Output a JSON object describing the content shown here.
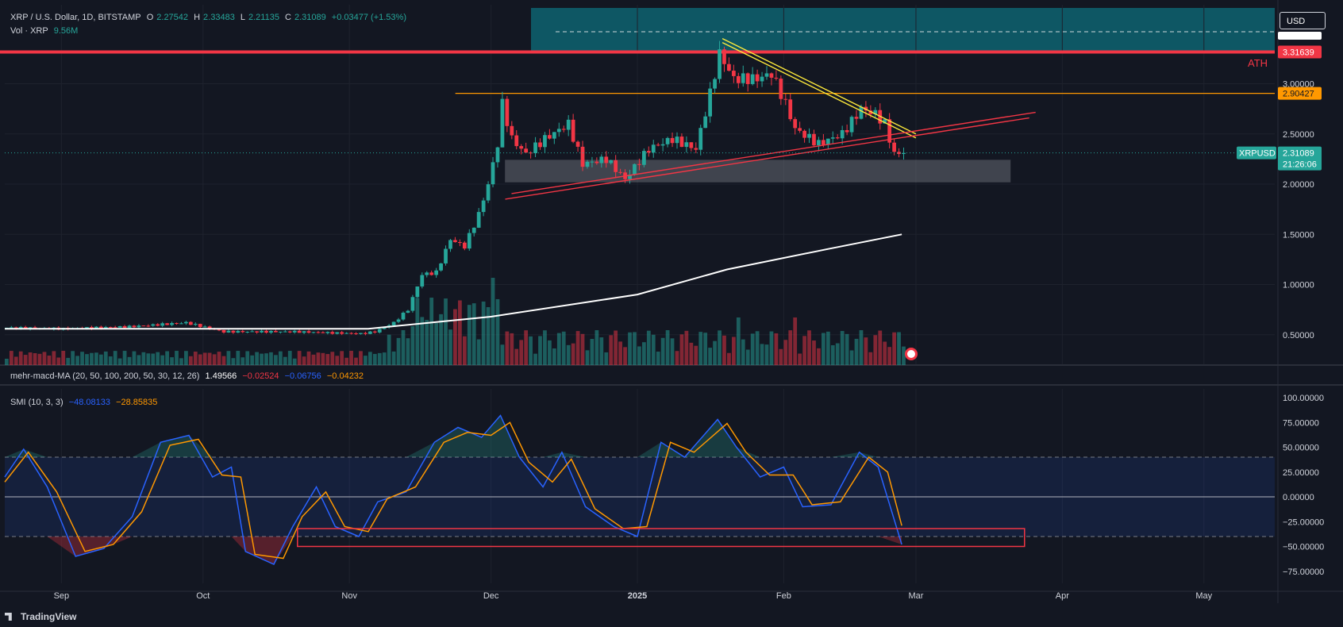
{
  "header": {
    "symbol_title": "XRP / U.S. Dollar, 1D, BITSTAMP",
    "o_label": "O",
    "o_value": "2.27542",
    "h_label": "H",
    "h_value": "2.33483",
    "l_label": "L",
    "l_value": "2.21135",
    "c_label": "C",
    "c_value": "2.31089",
    "change": "+0.03477 (+1.53%)",
    "vol_label": "Vol · XRP",
    "vol_value": "9.56M"
  },
  "currency_button": "USD",
  "indicators": {
    "macd_label": "mehr-macd-MA (20, 50, 100, 200, 50, 30, 12, 26)",
    "macd_v1": "1.49566",
    "macd_v2": "−0.02524",
    "macd_v3": "−0.06756",
    "macd_v4": "−0.04232",
    "smi_label": "SMI (10, 3, 3)",
    "smi_v1": "−48.08133",
    "smi_v2": "−28.85835"
  },
  "brand": "TradingView",
  "colors": {
    "background": "#131722",
    "up": "#26a69a",
    "down": "#f23645",
    "ma_line": "#ffffff",
    "resistance": "#ffeb3b",
    "support": "#f23645",
    "level_orange": "#ff9800",
    "ath_zone": "#0e6370",
    "smi_blue": "#2962ff",
    "smi_orange": "#ff9800"
  },
  "chart_data": [
    {
      "type": "candlestick",
      "symbol": "XRPUSD",
      "price_axis_labels": [
        "3.00000",
        "2.50000",
        "2.00000",
        "1.50000",
        "1.00000",
        "0.50000"
      ],
      "time_axis_labels": [
        "Sep",
        "Oct",
        "Nov",
        "Dec",
        "2025",
        "Feb",
        "Mar",
        "Apr",
        "May"
      ],
      "current_price": "2.31089",
      "countdown": "21:26:06",
      "levels": [
        {
          "label": "ATH",
          "value": "3.31639"
        },
        {
          "label": "",
          "value": "2.90427"
        }
      ],
      "ath_label": "ATH",
      "price_path": [
        [
          "2024-08-20",
          0.57
        ],
        [
          "2024-09-01",
          0.56
        ],
        [
          "2024-09-15",
          0.58
        ],
        [
          "2024-09-27",
          0.62
        ],
        [
          "2024-10-05",
          0.53
        ],
        [
          "2024-10-20",
          0.53
        ],
        [
          "2024-11-03",
          0.51
        ],
        [
          "2024-11-06",
          0.53
        ],
        [
          "2024-11-10",
          0.62
        ],
        [
          "2024-11-13",
          0.75
        ],
        [
          "2024-11-16",
          1.1
        ],
        [
          "2024-11-19",
          1.12
        ],
        [
          "2024-11-22",
          1.45
        ],
        [
          "2024-11-25",
          1.38
        ],
        [
          "2024-11-28",
          1.7
        ],
        [
          "2024-11-30",
          2.0
        ],
        [
          "2024-12-02",
          2.4
        ],
        [
          "2024-12-03",
          2.8
        ],
        [
          "2024-12-05",
          2.45
        ],
        [
          "2024-12-08",
          2.3
        ],
        [
          "2024-12-12",
          2.45
        ],
        [
          "2024-12-17",
          2.6
        ],
        [
          "2024-12-20",
          2.2
        ],
        [
          "2024-12-25",
          2.25
        ],
        [
          "2024-12-29",
          2.05
        ],
        [
          "2025-01-03",
          2.35
        ],
        [
          "2025-01-08",
          2.45
        ],
        [
          "2025-01-13",
          2.35
        ],
        [
          "2025-01-16",
          2.9
        ],
        [
          "2025-01-18",
          3.3
        ],
        [
          "2025-01-21",
          3.05
        ],
        [
          "2025-01-26",
          3.05
        ],
        [
          "2025-01-29",
          3.1
        ],
        [
          "2025-02-01",
          2.8
        ],
        [
          "2025-02-03",
          2.55
        ],
        [
          "2025-02-08",
          2.4
        ],
        [
          "2025-02-13",
          2.5
        ],
        [
          "2025-02-17",
          2.75
        ],
        [
          "2025-02-20",
          2.7
        ],
        [
          "2025-02-22",
          2.6
        ],
        [
          "2025-02-24",
          2.3
        ],
        [
          "2025-02-26",
          2.31
        ]
      ],
      "ma_line": [
        [
          "2024-08-20",
          0.56
        ],
        [
          "2024-11-05",
          0.56
        ],
        [
          "2024-12-01",
          0.68
        ],
        [
          "2025-01-01",
          0.9
        ],
        [
          "2025-01-20",
          1.15
        ],
        [
          "2025-02-10",
          1.35
        ],
        [
          "2025-02-26",
          1.5
        ]
      ],
      "resistance_line": [
        [
          "2025-01-19",
          3.45
        ],
        [
          "2025-02-29",
          2.5
        ]
      ],
      "support_line": [
        [
          "2024-12-04",
          1.85
        ],
        [
          "2025-03-25",
          2.66
        ]
      ],
      "support_zone": {
        "from": "2024-12-04",
        "to": "2025-03-21",
        "low": 2.02,
        "high": 2.24
      }
    },
    {
      "type": "line",
      "name": "SMI (10, 3, 3)",
      "y_axis_labels": [
        "100.00000",
        "75.00000",
        "50.00000",
        "25.00000",
        "0.00000",
        "−25.00000",
        "−50.00000",
        "−75.00000"
      ],
      "bands": [
        40,
        -40
      ],
      "series": [
        {
          "name": "SMI",
          "color": "#2962ff",
          "values": [
            [
              "2024-08-20",
              20
            ],
            [
              "2024-08-24",
              48
            ],
            [
              "2024-08-29",
              10
            ],
            [
              "2024-09-04",
              -60
            ],
            [
              "2024-09-10",
              -52
            ],
            [
              "2024-09-16",
              -20
            ],
            [
              "2024-09-22",
              55
            ],
            [
              "2024-09-28",
              62
            ],
            [
              "2024-10-03",
              20
            ],
            [
              "2024-10-07",
              30
            ],
            [
              "2024-10-10",
              -55
            ],
            [
              "2024-10-16",
              -68
            ],
            [
              "2024-10-20",
              -30
            ],
            [
              "2024-10-25",
              10
            ],
            [
              "2024-10-29",
              -30
            ],
            [
              "2024-11-03",
              -40
            ],
            [
              "2024-11-07",
              -5
            ],
            [
              "2024-11-13",
              5
            ],
            [
              "2024-11-19",
              55
            ],
            [
              "2024-11-24",
              70
            ],
            [
              "2024-11-29",
              60
            ],
            [
              "2024-12-03",
              82
            ],
            [
              "2024-12-07",
              40
            ],
            [
              "2024-12-12",
              10
            ],
            [
              "2024-12-16",
              45
            ],
            [
              "2024-12-21",
              -10
            ],
            [
              "2024-12-27",
              -30
            ],
            [
              "2025-01-01",
              -40
            ],
            [
              "2025-01-06",
              55
            ],
            [
              "2025-01-11",
              40
            ],
            [
              "2025-01-18",
              78
            ],
            [
              "2025-01-22",
              50
            ],
            [
              "2025-01-27",
              20
            ],
            [
              "2025-02-01",
              30
            ],
            [
              "2025-02-05",
              -10
            ],
            [
              "2025-02-11",
              -8
            ],
            [
              "2025-02-17",
              45
            ],
            [
              "2025-02-21",
              30
            ],
            [
              "2025-02-26",
              -48
            ]
          ]
        },
        {
          "name": "Signal",
          "color": "#ff9800",
          "values": [
            [
              "2024-08-20",
              15
            ],
            [
              "2024-08-25",
              45
            ],
            [
              "2024-08-31",
              5
            ],
            [
              "2024-09-06",
              -55
            ],
            [
              "2024-09-12",
              -48
            ],
            [
              "2024-09-18",
              -15
            ],
            [
              "2024-09-24",
              52
            ],
            [
              "2024-09-30",
              58
            ],
            [
              "2024-10-05",
              22
            ],
            [
              "2024-10-09",
              20
            ],
            [
              "2024-10-12",
              -58
            ],
            [
              "2024-10-18",
              -62
            ],
            [
              "2024-10-22",
              -20
            ],
            [
              "2024-10-27",
              5
            ],
            [
              "2024-10-31",
              -30
            ],
            [
              "2024-11-05",
              -35
            ],
            [
              "2024-11-09",
              -2
            ],
            [
              "2024-11-15",
              10
            ],
            [
              "2024-11-21",
              55
            ],
            [
              "2024-11-26",
              65
            ],
            [
              "2024-12-01",
              62
            ],
            [
              "2024-12-05",
              75
            ],
            [
              "2024-12-09",
              35
            ],
            [
              "2024-12-14",
              15
            ],
            [
              "2024-12-18",
              38
            ],
            [
              "2024-12-23",
              -12
            ],
            [
              "2024-12-29",
              -32
            ],
            [
              "2025-01-03",
              -30
            ],
            [
              "2025-01-08",
              55
            ],
            [
              "2025-01-13",
              45
            ],
            [
              "2025-01-20",
              74
            ],
            [
              "2025-01-24",
              45
            ],
            [
              "2025-01-29",
              22
            ],
            [
              "2025-02-03",
              22
            ],
            [
              "2025-02-07",
              -8
            ],
            [
              "2025-02-13",
              -5
            ],
            [
              "2025-02-19",
              40
            ],
            [
              "2025-02-23",
              25
            ],
            [
              "2025-02-26",
              -29
            ]
          ]
        }
      ],
      "highlight_box": {
        "from": "2024-10-21",
        "to": "2025-03-24",
        "low": -50,
        "high": -32
      }
    }
  ]
}
